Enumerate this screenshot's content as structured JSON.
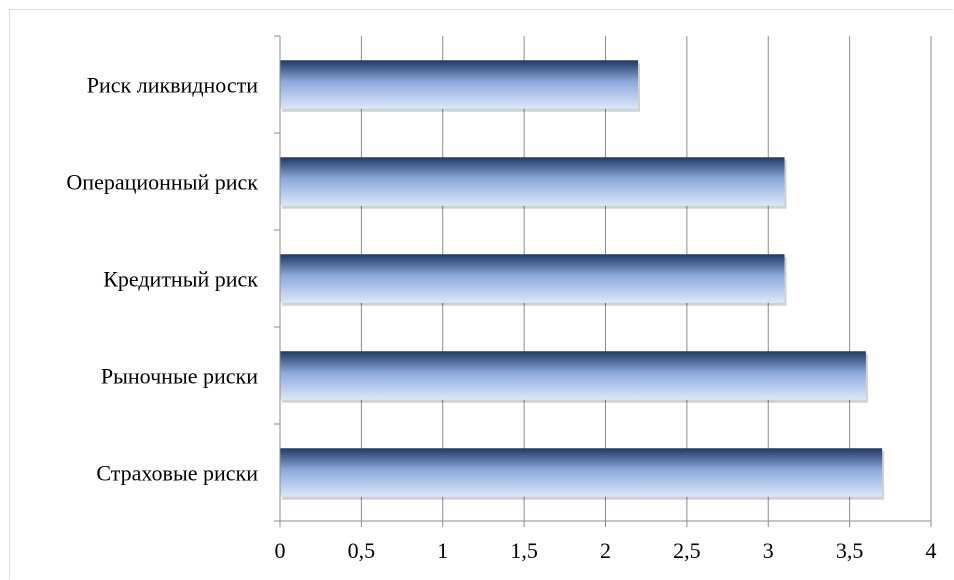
{
  "chart_data": {
    "type": "bar",
    "orientation": "horizontal",
    "categories": [
      "Риск ликвидности",
      "Операционный риск",
      "Кредитный риск",
      "Рыночные риски",
      "Страховые риски"
    ],
    "values": [
      2.2,
      3.1,
      3.1,
      3.6,
      3.7
    ],
    "xlim": [
      0,
      4
    ],
    "x_ticks": [
      0,
      0.5,
      1,
      1.5,
      2,
      2.5,
      3,
      3.5,
      4
    ],
    "x_tick_labels": [
      "0",
      "0,5",
      "1",
      "1,5",
      "2",
      "2,5",
      "3",
      "3,5",
      "4"
    ],
    "grid": "vertical",
    "legend": "none",
    "bar_colors": {
      "dark": "#1f3864",
      "mid": "#8eaadb",
      "light": "#dce8f8"
    },
    "title": "",
    "xlabel": "",
    "ylabel": ""
  }
}
